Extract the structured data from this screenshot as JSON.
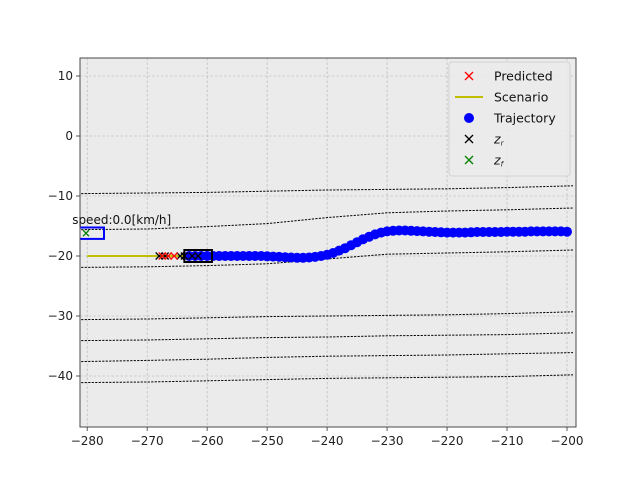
{
  "chart_data": {
    "type": "scatter",
    "xlim": [
      -281.2,
      -198.5
    ],
    "ylim": [
      -48.5,
      13
    ],
    "xticks": [
      -280,
      -270,
      -260,
      -250,
      -240,
      -230,
      -220,
      -210,
      -200
    ],
    "yticks": [
      10,
      0,
      -10,
      -20,
      -30,
      -40
    ],
    "xtick_labels": [
      "−280",
      "−270",
      "−260",
      "−250",
      "−240",
      "−230",
      "−220",
      "−210",
      "−200"
    ],
    "ytick_labels": [
      "10",
      "0",
      "−10",
      "−20",
      "−30",
      "−40"
    ],
    "grid": true,
    "legend_placement": "top-right",
    "colors": {
      "predicted": "#ff0000",
      "scenario": "#bfbf00",
      "trajectory": "#0000ff",
      "z_r": "#000000",
      "z_f": "#008000",
      "background": "#ebebeb"
    },
    "legend": [
      {
        "key": "predicted",
        "label": "Predicted",
        "marker": "x-red"
      },
      {
        "key": "scenario",
        "label": "Scenario",
        "marker": "line-olive"
      },
      {
        "key": "trajectory",
        "label": "Trajectory",
        "marker": "dot-blue"
      },
      {
        "key": "z_r",
        "label": "zr",
        "marker": "x-black"
      },
      {
        "key": "z_f",
        "label": "zf",
        "marker": "x-green"
      }
    ],
    "annotation": {
      "text": "speed:0.0[km/h]",
      "x": -281.5,
      "y": -14
    },
    "lanes": [
      {
        "x": [
          -281,
          -270,
          -260,
          -250,
          -240,
          -230,
          -220,
          -210,
          -199
        ],
        "y": [
          -9.6,
          -9.5,
          -9.4,
          -9.2,
          -9.0,
          -8.9,
          -8.8,
          -8.6,
          -8.3
        ]
      },
      {
        "x": [
          -281,
          -270,
          -260,
          -250,
          -240,
          -230,
          -220,
          -210,
          -199
        ],
        "y": [
          -15.6,
          -15.5,
          -15.1,
          -14.6,
          -13.6,
          -12.8,
          -12.5,
          -12.3,
          -12.0
        ]
      },
      {
        "x": [
          -281,
          -270,
          -260,
          -250,
          -240,
          -230,
          -220,
          -210,
          -199
        ],
        "y": [
          -21.9,
          -21.8,
          -21.6,
          -21.3,
          -20.5,
          -19.7,
          -19.5,
          -19.3,
          -19.0
        ]
      },
      {
        "x": [
          -281,
          -270,
          -260,
          -250,
          -240,
          -230,
          -220,
          -210,
          -199
        ],
        "y": [
          -30.6,
          -30.5,
          -30.3,
          -30.1,
          -30.0,
          -29.9,
          -29.8,
          -29.6,
          -29.3
        ]
      },
      {
        "x": [
          -281,
          -270,
          -260,
          -250,
          -240,
          -230,
          -220,
          -210,
          -199
        ],
        "y": [
          -34.1,
          -34.0,
          -33.8,
          -33.6,
          -33.5,
          -33.3,
          -33.2,
          -33.1,
          -32.8
        ]
      },
      {
        "x": [
          -281,
          -270,
          -260,
          -250,
          -240,
          -230,
          -220,
          -210,
          -199
        ],
        "y": [
          -37.6,
          -37.4,
          -37.2,
          -36.9,
          -36.7,
          -36.6,
          -36.5,
          -36.3,
          -36.1
        ]
      },
      {
        "x": [
          -281,
          -270,
          -260,
          -250,
          -240,
          -230,
          -220,
          -210,
          -199
        ],
        "y": [
          -41.1,
          -41.0,
          -40.8,
          -40.6,
          -40.4,
          -40.3,
          -40.2,
          -40.1,
          -39.8
        ]
      }
    ],
    "scenario": {
      "x": [
        -280,
        -277,
        -274,
        -271,
        -268,
        -265,
        -262
      ],
      "y": [
        -20,
        -20,
        -20,
        -20,
        -20,
        -20,
        -20
      ]
    },
    "trajectory": {
      "x": [
        -263,
        -262,
        -261,
        -260,
        -259,
        -258,
        -257,
        -256,
        -255,
        -254,
        -253,
        -252,
        -251,
        -250,
        -249,
        -248,
        -247,
        -246,
        -245,
        -244,
        -243,
        -242,
        -241,
        -240,
        -239,
        -238,
        -237,
        -236,
        -235,
        -234,
        -233,
        -232,
        -231,
        -230,
        -229,
        -228,
        -227,
        -226,
        -225,
        -224,
        -223,
        -222,
        -221,
        -220,
        -219,
        -218,
        -217,
        -216,
        -215,
        -214,
        -213,
        -212,
        -211,
        -210,
        -209,
        -208,
        -207,
        -206,
        -205,
        -204,
        -203,
        -202,
        -201,
        -200
      ],
      "y": [
        -20,
        -20,
        -20,
        -20,
        -20,
        -20,
        -20,
        -20,
        -20,
        -20,
        -20,
        -20,
        -20,
        -20.05,
        -20.1,
        -20.15,
        -20.2,
        -20.25,
        -20.3,
        -20.3,
        -20.25,
        -20.15,
        -20.0,
        -19.8,
        -19.5,
        -19.1,
        -18.7,
        -18.2,
        -17.7,
        -17.2,
        -16.8,
        -16.4,
        -16.1,
        -15.9,
        -15.8,
        -15.75,
        -15.75,
        -15.8,
        -15.85,
        -15.9,
        -15.95,
        -16.0,
        -16.05,
        -16.1,
        -16.1,
        -16.1,
        -16.1,
        -16.05,
        -16.0,
        -16.0,
        -16.0,
        -16.0,
        -16.0,
        -15.95,
        -15.95,
        -15.95,
        -15.95,
        -15.9,
        -15.9,
        -15.9,
        -15.9,
        -15.9,
        -15.9,
        -15.95
      ]
    },
    "predicted": {
      "x": [
        -267.5,
        -266.5,
        -265.5
      ],
      "y": [
        -20,
        -20,
        -20
      ]
    },
    "z_r": {
      "x": [
        -268,
        -267,
        -264.5,
        -263.8,
        -262.5,
        -261.5
      ],
      "y": [
        -20,
        -20,
        -20,
        -20,
        -20,
        -20
      ]
    },
    "z_f": {
      "x": [
        -280.2
      ],
      "y": [
        -16.2
      ]
    },
    "vehicles": [
      {
        "name": "ego-vehicle",
        "x": -261.5,
        "y": -20,
        "w": 4.6,
        "h": 2.0,
        "color": "#000000"
      },
      {
        "name": "other-vehicle",
        "x": -279.4,
        "y": -16.2,
        "w": 4.4,
        "h": 1.9,
        "color": "#0000ff"
      }
    ]
  }
}
